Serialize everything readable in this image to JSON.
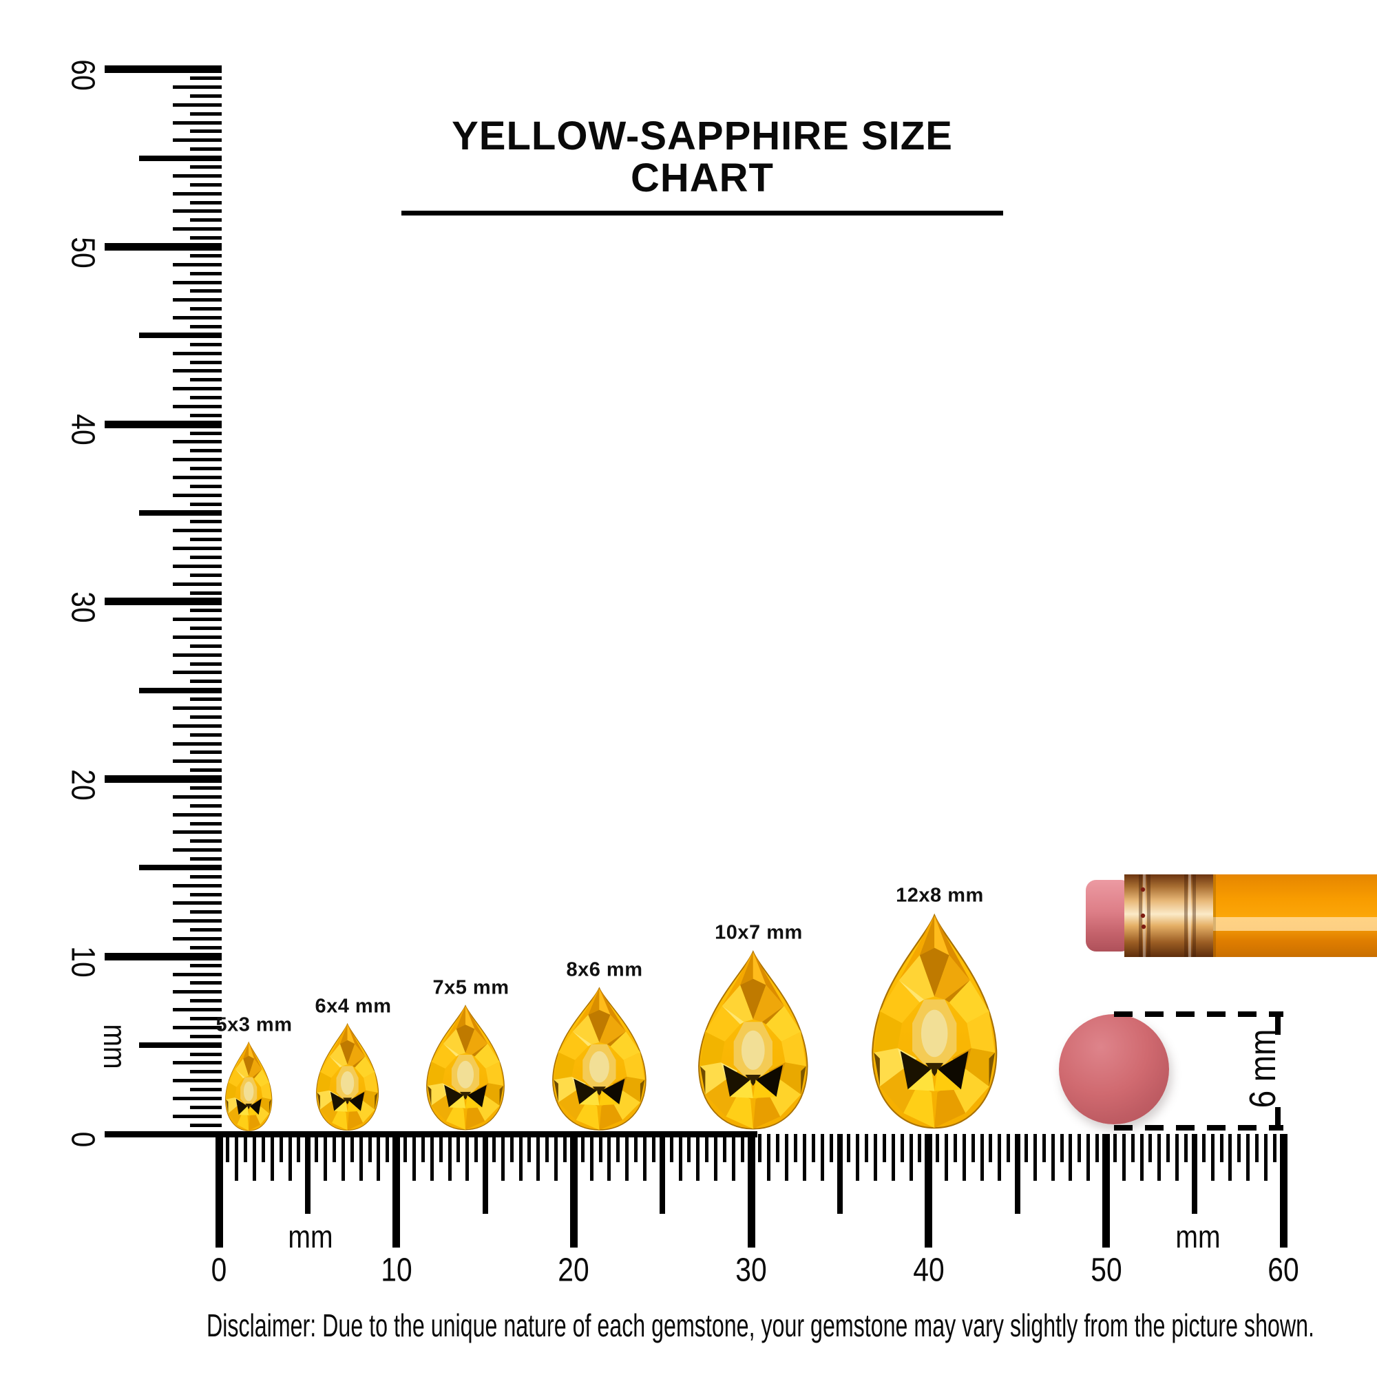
{
  "title": "YELLOW-SAPPHIRE SIZE CHART",
  "rulers": {
    "vertical": {
      "unit": "mm",
      "tick_labels": [
        "60",
        "50",
        "40",
        "30",
        "20",
        "10",
        "0"
      ],
      "range_mm": [
        0,
        60
      ],
      "step_mm": 0.5
    },
    "horizontal": {
      "unit_left": "mm",
      "unit_right": "mm",
      "tick_labels": [
        "0",
        "10",
        "20",
        "30",
        "40",
        "50",
        "60"
      ],
      "range_mm": [
        0,
        60
      ],
      "step_mm": 0.5
    }
  },
  "gems": [
    {
      "label": "5x3 mm",
      "length_mm": 5,
      "width_mm": 3
    },
    {
      "label": "6x4 mm",
      "length_mm": 6,
      "width_mm": 4
    },
    {
      "label": "7x5 mm",
      "length_mm": 7,
      "width_mm": 5
    },
    {
      "label": "8x6 mm",
      "length_mm": 8,
      "width_mm": 6
    },
    {
      "label": "10x7 mm",
      "length_mm": 10,
      "width_mm": 7
    },
    {
      "label": "12x8 mm",
      "length_mm": 12,
      "width_mm": 8
    }
  ],
  "reference_objects": {
    "pencil": "pencil",
    "round_eraser_dimension_label": "6 mm"
  },
  "disclaimer": "Disclaimer: Due to the unique nature of each gemstone, your gemstone may vary slightly from the picture shown.",
  "colors": {
    "ink": "#000000",
    "gem_yellow": "#FFC913",
    "gem_amber": "#E89A00",
    "gem_shadow": "#1A1200",
    "pencil_orange": "#F89C00",
    "eraser_pink": "#C05D64"
  }
}
